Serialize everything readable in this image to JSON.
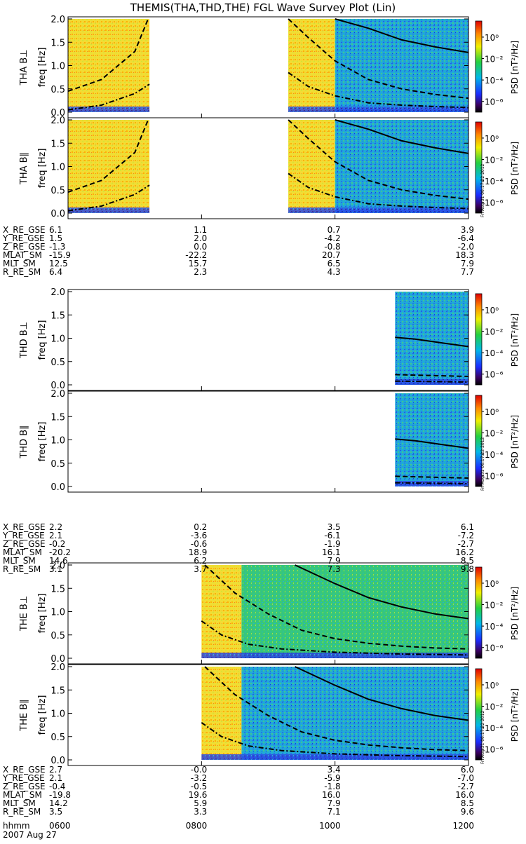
{
  "title": "THEMIS(THA,THD,THE) FGL Wave Survey Plot (Lin)",
  "stamp": "Fri Aug 31 06:17:22 2012",
  "colors": {
    "line": "#000000",
    "text": "#000000"
  },
  "chart_data": {
    "type": "heatmap",
    "x_unit": "hhmm",
    "xlim": [
      600,
      1200
    ],
    "x_ticks": [
      "0600",
      "0800",
      "1000",
      "1200"
    ],
    "ylabel": "freq [Hz]",
    "ylim": [
      0,
      2.0
    ],
    "y_ticks": [
      "0.0",
      "0.5",
      "1.0",
      "1.5",
      "2.0"
    ],
    "colorbar": {
      "label": "PSD [nT²/Hz]",
      "log_scale": true,
      "ticks": [
        "10⁰",
        "10⁻²",
        "10⁻⁴",
        "10⁻⁶"
      ],
      "exponents": [
        0,
        -2,
        -4,
        -6
      ]
    },
    "date_line": "2007 Aug 27",
    "footer_time_label": "hhmm",
    "panels": [
      {
        "label": "THA B⊥",
        "probe": "THA",
        "coverage": [
          [
            600,
            722
          ],
          [
            930,
            1200
          ]
        ],
        "lines": {
          "solid": [
            [
              1000,
              2.1
            ],
            [
              1050,
              1.8
            ],
            [
              1100,
              1.55
            ],
            [
              1150,
              1.4
            ],
            [
              1200,
              1.28
            ]
          ],
          "dashed": [
            [
              600,
              0.45
            ],
            [
              650,
              0.7
            ],
            [
              700,
              1.3
            ],
            [
              720,
              2.05
            ],
            [
              930,
              2.05
            ],
            [
              960,
              1.6
            ],
            [
              1000,
              1.1
            ],
            [
              1050,
              0.7
            ],
            [
              1100,
              0.5
            ],
            [
              1150,
              0.38
            ],
            [
              1200,
              0.3
            ]
          ],
          "dashdot": [
            [
              600,
              0.05
            ],
            [
              650,
              0.15
            ],
            [
              700,
              0.4
            ],
            [
              722,
              0.6
            ],
            [
              930,
              0.85
            ],
            [
              960,
              0.55
            ],
            [
              1000,
              0.35
            ],
            [
              1050,
              0.2
            ],
            [
              1100,
              0.15
            ],
            [
              1150,
              0.12
            ],
            [
              1200,
              0.1
            ]
          ]
        }
      },
      {
        "label": "THA B∥",
        "probe": "THA",
        "coverage": [
          [
            600,
            722
          ],
          [
            930,
            1200
          ]
        ],
        "lines": {
          "solid": [
            [
              1000,
              2.1
            ],
            [
              1050,
              1.8
            ],
            [
              1100,
              1.55
            ],
            [
              1150,
              1.4
            ],
            [
              1200,
              1.28
            ]
          ],
          "dashed": [
            [
              600,
              0.45
            ],
            [
              650,
              0.7
            ],
            [
              700,
              1.3
            ],
            [
              720,
              2.05
            ],
            [
              930,
              2.05
            ],
            [
              960,
              1.6
            ],
            [
              1000,
              1.1
            ],
            [
              1050,
              0.7
            ],
            [
              1100,
              0.5
            ],
            [
              1150,
              0.38
            ],
            [
              1200,
              0.3
            ]
          ],
          "dashdot": [
            [
              600,
              0.05
            ],
            [
              650,
              0.15
            ],
            [
              700,
              0.4
            ],
            [
              722,
              0.6
            ],
            [
              930,
              0.85
            ],
            [
              960,
              0.55
            ],
            [
              1000,
              0.35
            ],
            [
              1050,
              0.2
            ],
            [
              1100,
              0.15
            ],
            [
              1150,
              0.12
            ],
            [
              1200,
              0.1
            ]
          ]
        }
      },
      {
        "label": "THD B⊥",
        "probe": "THD",
        "coverage": [
          [
            1090,
            1200
          ]
        ],
        "lines": {
          "solid": [
            [
              1090,
              1.02
            ],
            [
              1120,
              0.98
            ],
            [
              1150,
              0.92
            ],
            [
              1180,
              0.86
            ],
            [
              1200,
              0.82
            ]
          ],
          "dashed": [
            [
              1090,
              0.22
            ],
            [
              1200,
              0.18
            ]
          ],
          "dashdot": [
            [
              1090,
              0.08
            ],
            [
              1200,
              0.06
            ]
          ]
        }
      },
      {
        "label": "THD B∥",
        "probe": "THD",
        "coverage": [
          [
            1090,
            1200
          ]
        ],
        "lines": {
          "solid": [
            [
              1090,
              1.02
            ],
            [
              1120,
              0.98
            ],
            [
              1150,
              0.92
            ],
            [
              1180,
              0.86
            ],
            [
              1200,
              0.82
            ]
          ],
          "dashed": [
            [
              1090,
              0.22
            ],
            [
              1200,
              0.18
            ]
          ],
          "dashdot": [
            [
              1090,
              0.08
            ],
            [
              1200,
              0.06
            ]
          ]
        }
      },
      {
        "label": "THE B⊥",
        "probe": "THE",
        "coverage": [
          [
            800,
            1200
          ]
        ],
        "lines": {
          "solid": [
            [
              940,
              2.1
            ],
            [
              1000,
              1.6
            ],
            [
              1050,
              1.3
            ],
            [
              1100,
              1.1
            ],
            [
              1150,
              0.95
            ],
            [
              1200,
              0.85
            ]
          ],
          "dashed": [
            [
              805,
              2.05
            ],
            [
              850,
              1.4
            ],
            [
              900,
              0.95
            ],
            [
              950,
              0.6
            ],
            [
              1000,
              0.42
            ],
            [
              1050,
              0.32
            ],
            [
              1100,
              0.26
            ],
            [
              1150,
              0.22
            ],
            [
              1200,
              0.2
            ]
          ],
          "dashdot": [
            [
              800,
              0.8
            ],
            [
              830,
              0.5
            ],
            [
              870,
              0.3
            ],
            [
              920,
              0.2
            ],
            [
              1000,
              0.13
            ],
            [
              1100,
              0.09
            ],
            [
              1200,
              0.07
            ]
          ]
        }
      },
      {
        "label": "THE B∥",
        "probe": "THE",
        "coverage": [
          [
            800,
            1200
          ]
        ],
        "lines": {
          "solid": [
            [
              940,
              2.1
            ],
            [
              1000,
              1.6
            ],
            [
              1050,
              1.3
            ],
            [
              1100,
              1.1
            ],
            [
              1150,
              0.95
            ],
            [
              1200,
              0.85
            ]
          ],
          "dashed": [
            [
              805,
              2.05
            ],
            [
              850,
              1.4
            ],
            [
              900,
              0.95
            ],
            [
              950,
              0.6
            ],
            [
              1000,
              0.42
            ],
            [
              1050,
              0.32
            ],
            [
              1100,
              0.26
            ],
            [
              1150,
              0.22
            ],
            [
              1200,
              0.2
            ]
          ],
          "dashdot": [
            [
              800,
              0.8
            ],
            [
              830,
              0.5
            ],
            [
              870,
              0.3
            ],
            [
              920,
              0.2
            ],
            [
              1000,
              0.13
            ],
            [
              1100,
              0.09
            ],
            [
              1200,
              0.07
            ]
          ]
        }
      }
    ],
    "ephemeris": [
      {
        "probe": "THA",
        "rows": [
          {
            "name": "X_RE_GSE",
            "values": [
              "6.1",
              "1.1",
              "0.7",
              "3.9"
            ]
          },
          {
            "name": "Y_RE_GSE",
            "values": [
              "1.5",
              "2.0",
              "-4.2",
              "-6.4"
            ]
          },
          {
            "name": "Z_RE_GSE",
            "values": [
              "-1.3",
              "0.0",
              "-0.8",
              "-2.0"
            ]
          },
          {
            "name": "MLAT_SM",
            "values": [
              "-15.9",
              "-22.2",
              "20.7",
              "18.3"
            ]
          },
          {
            "name": "MLT_SM",
            "values": [
              "12.5",
              "15.7",
              "6.5",
              "7.9"
            ]
          },
          {
            "name": "R_RE_SM",
            "values": [
              "6.4",
              "2.3",
              "4.3",
              "7.7"
            ]
          }
        ]
      },
      {
        "probe": "THD",
        "rows": [
          {
            "name": "X_RE_GSE",
            "values": [
              "2.2",
              "0.2",
              "3.5",
              "6.1"
            ]
          },
          {
            "name": "Y_RE_GSE",
            "values": [
              "2.1",
              "-3.6",
              "-6.1",
              "-7.2"
            ]
          },
          {
            "name": "Z_RE_GSE",
            "values": [
              "-0.2",
              "-0.6",
              "-1.9",
              "-2.7"
            ]
          },
          {
            "name": "MLAT_SM",
            "values": [
              "-20.2",
              "18.9",
              "16.1",
              "16.2"
            ]
          },
          {
            "name": "MLT_SM",
            "values": [
              "14.6",
              "6.2",
              "7.9",
              "8.5"
            ]
          },
          {
            "name": "R_RE_SM",
            "values": [
              "3.1",
              "3.7",
              "7.3",
              "9.8"
            ]
          }
        ]
      },
      {
        "probe": "THE",
        "rows": [
          {
            "name": "X_RE_GSE",
            "values": [
              "2.7",
              "-0.0",
              "3.4",
              "6.0"
            ]
          },
          {
            "name": "Y_RE_GSE",
            "values": [
              "2.1",
              "-3.2",
              "-5.9",
              "-7.0"
            ]
          },
          {
            "name": "Z_RE_GSE",
            "values": [
              "-0.4",
              "-0.5",
              "-1.8",
              "-2.7"
            ]
          },
          {
            "name": "MLAT_SM",
            "values": [
              "-19.8",
              "19.6",
              "16.0",
              "16.0"
            ]
          },
          {
            "name": "MLT_SM",
            "values": [
              "14.2",
              "5.9",
              "7.9",
              "8.5"
            ]
          },
          {
            "name": "R_RE_SM",
            "values": [
              "3.5",
              "3.3",
              "7.1",
              "9.6"
            ]
          }
        ]
      }
    ]
  }
}
